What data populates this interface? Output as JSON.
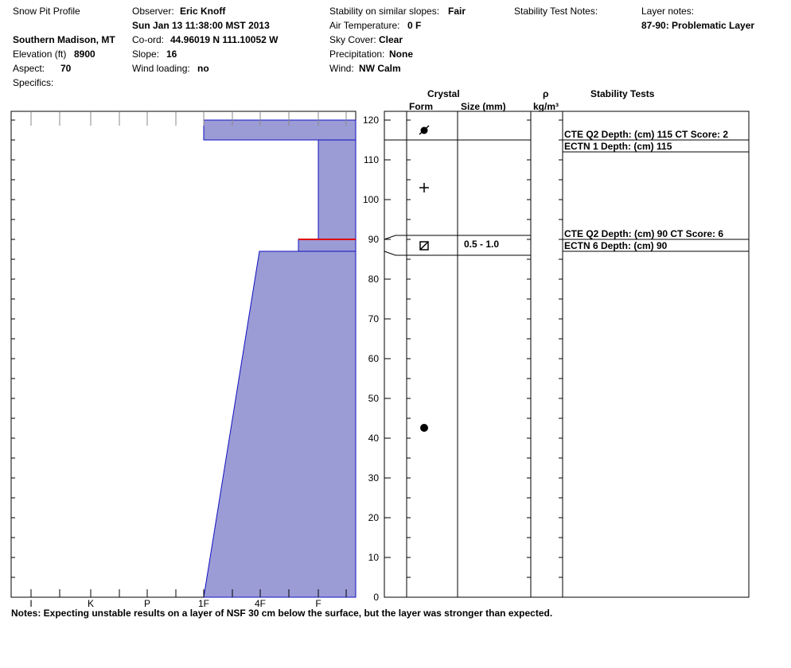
{
  "header": {
    "title": "Snow Pit Profile",
    "location": "Southern Madison, MT",
    "elevation_label": "Elevation (ft)",
    "elevation_value": "8900",
    "aspect_label": "Aspect:",
    "aspect_value": "70",
    "specifics_label": "Specifics:",
    "observer_label": "Observer:",
    "observer_value": "Eric Knoff",
    "datetime": "Sun Jan 13 11:38:00 MST 2013",
    "coord_label": "Co-ord:",
    "coord_value": "44.96019 N 111.10052 W",
    "slope_label": "Slope:",
    "slope_value": "16",
    "wind_loading_label": "Wind loading:",
    "wind_loading_value": "no",
    "stability_label": "Stability on similar slopes:",
    "stability_value": "Fair",
    "air_temp_label": "Air Temperature:",
    "air_temp_value": "0 F",
    "sky_label": "Sky Cover:",
    "sky_value": "Clear",
    "precip_label": "Precipitation:",
    "precip_value": "None",
    "wind_label": "Wind:",
    "wind_value": "NW Calm",
    "stability_notes_label": "Stability Test Notes:",
    "layer_notes_label": "Layer notes:",
    "layer_notes_value": "87-90: Problematic Layer"
  },
  "columns": {
    "crystal": "Crystal",
    "form": "Form",
    "size": "Size (mm)",
    "rho": "ρ",
    "density_unit": "kg/m³",
    "stability_tests": "Stability Tests"
  },
  "notes": "Notes:  Expecting unstable results on a layer of NSF 30 cm below the surface, but the layer was stronger than expected.",
  "colors": {
    "layer_fill": "#9b9bd6",
    "layer_edge": "#1010c0",
    "weak_layer": "#dd0000"
  },
  "chart_data": {
    "type": "area",
    "hardness_ticks": [
      "I",
      "K",
      "P",
      "1F",
      "4F",
      "F"
    ],
    "depth_ticks": [
      0,
      10,
      20,
      30,
      40,
      50,
      60,
      70,
      80,
      90,
      100,
      110,
      120
    ],
    "ylim": [
      0,
      120
    ],
    "layers": [
      {
        "bottom": 115,
        "top": 120,
        "hardness_top": "1F",
        "hardness_bottom": "1F",
        "form_icon": "surface-hoar-icon",
        "size": ""
      },
      {
        "bottom": 90,
        "top": 115,
        "hardness_top": "F",
        "hardness_bottom": "F",
        "form_icon": "new-snow-icon",
        "size": ""
      },
      {
        "bottom": 87,
        "top": 90,
        "hardness_top": "F-",
        "hardness_bottom": "F-",
        "form_icon": "faceted-icon",
        "size": "0.5 - 1.0"
      },
      {
        "bottom": 0,
        "top": 87,
        "hardness_top": "4F-",
        "hardness_bottom": "1F",
        "form_icon": "rounded-icon",
        "size": ""
      }
    ],
    "weak_layer_depth": 90,
    "stability_tests": [
      {
        "depth": 115,
        "lines": [
          "CTE Q2 Depth: (cm) 115 CT Score: 2",
          "ECTN 1   Depth: (cm) 115"
        ]
      },
      {
        "depth": 90,
        "lines": [
          "CTE Q2 Depth: (cm) 90 CT Score: 6",
          "ECTN 6   Depth: (cm) 90"
        ]
      }
    ]
  }
}
